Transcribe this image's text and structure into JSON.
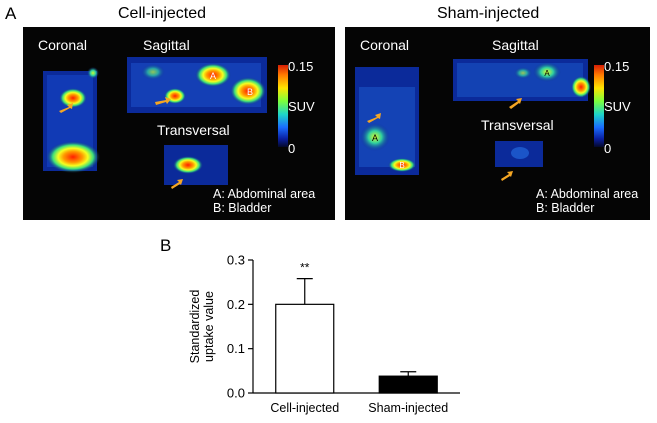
{
  "panel_a": {
    "letter": "A",
    "groups": [
      {
        "title": "Cell-injected",
        "view_labels": {
          "coronal": "Coronal",
          "sagittal": "Sagittal",
          "transversal": "Transversal"
        },
        "colorbar": {
          "max": "0.15",
          "mid": "SUV",
          "min": "0"
        },
        "legend": {
          "a": "A: Abdominal area",
          "b": "B: Bladder"
        },
        "markers": {
          "a": "A",
          "b": "B"
        }
      },
      {
        "title": "Sham-injected",
        "view_labels": {
          "coronal": "Coronal",
          "sagittal": "Sagittal",
          "transversal": "Transversal"
        },
        "colorbar": {
          "max": "0.15",
          "mid": "SUV",
          "min": "0"
        },
        "legend": {
          "a": "A: Abdominal area",
          "b": "B: Bladder"
        },
        "markers": {
          "a": "A",
          "b": "B"
        }
      }
    ],
    "colors": {
      "arrow": "#f5a623",
      "background": "#050505"
    }
  },
  "panel_b": {
    "letter": "B"
  },
  "chart_data": {
    "type": "bar",
    "categories": [
      "Cell-injected",
      "Sham-injected"
    ],
    "values": [
      0.2,
      0.038
    ],
    "errors": [
      0.058,
      0.01
    ],
    "bar_fills": [
      "#ffffff",
      "#000000"
    ],
    "ylabel": "Standardized uptake value",
    "ylim": [
      0,
      0.3
    ],
    "yticks": [
      "0.0",
      "0.1",
      "0.2",
      "0.3"
    ],
    "annotations": [
      {
        "category": "Cell-injected",
        "text": "**"
      }
    ],
    "grid": false
  }
}
